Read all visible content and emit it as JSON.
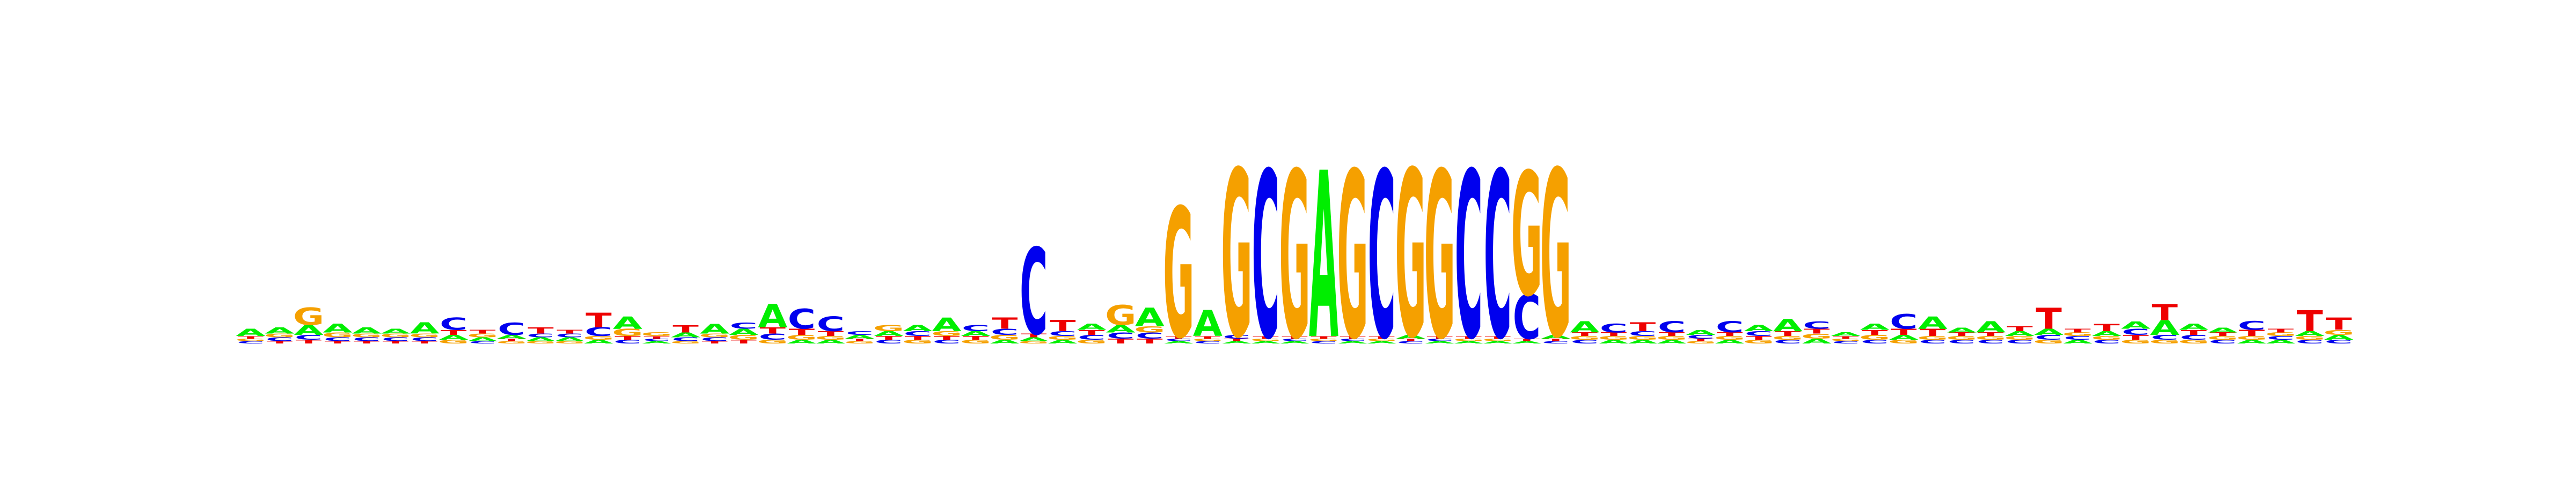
{
  "chart_data": {
    "type": "sequence-logo",
    "alphabet": [
      "A",
      "C",
      "G",
      "T"
    ],
    "colors": {
      "A": "#00ee00",
      "C": "#0000ee",
      "G": "#f5a000",
      "T": "#ee0000"
    },
    "ylim": [
      0,
      2
    ],
    "positions": [
      {
        "A": 0.06,
        "C": 0.02,
        "G": 0.02,
        "T": 0.02
      },
      {
        "A": 0.05,
        "C": 0.03,
        "G": 0.03,
        "T": 0.02
      },
      {
        "A": 0.08,
        "C": 0.04,
        "G": 0.14,
        "T": 0.03
      },
      {
        "A": 0.07,
        "C": 0.03,
        "G": 0.04,
        "T": 0.02
      },
      {
        "A": 0.05,
        "C": 0.03,
        "G": 0.03,
        "T": 0.02
      },
      {
        "A": 0.04,
        "C": 0.03,
        "G": 0.03,
        "T": 0.02
      },
      {
        "A": 0.09,
        "C": 0.03,
        "G": 0.03,
        "T": 0.02
      },
      {
        "A": 0.04,
        "C": 0.1,
        "G": 0.03,
        "T": 0.04
      },
      {
        "A": 0.03,
        "C": 0.02,
        "G": 0.03,
        "T": 0.03
      },
      {
        "A": 0.03,
        "C": 0.1,
        "G": 0.02,
        "T": 0.02
      },
      {
        "A": 0.03,
        "C": 0.03,
        "G": 0.02,
        "T": 0.05
      },
      {
        "A": 0.03,
        "C": 0.03,
        "G": 0.02,
        "T": 0.03
      },
      {
        "A": 0.03,
        "C": 0.07,
        "G": 0.03,
        "T": 0.12
      },
      {
        "A": 0.1,
        "C": 0.03,
        "G": 0.06,
        "T": 0.03
      },
      {
        "A": 0.02,
        "C": 0.02,
        "G": 0.03,
        "T": 0.02
      },
      {
        "A": 0.04,
        "C": 0.03,
        "G": 0.02,
        "T": 0.06
      },
      {
        "A": 0.08,
        "C": 0.03,
        "G": 0.03,
        "T": 0.02
      },
      {
        "A": 0.05,
        "C": 0.05,
        "G": 0.04,
        "T": 0.03
      },
      {
        "A": 0.19,
        "C": 0.05,
        "G": 0.03,
        "T": 0.05
      },
      {
        "A": 0.03,
        "C": 0.16,
        "G": 0.04,
        "T": 0.05
      },
      {
        "A": 0.03,
        "C": 0.12,
        "G": 0.03,
        "T": 0.04
      },
      {
        "A": 0.03,
        "C": 0.03,
        "G": 0.02,
        "T": 0.02
      },
      {
        "A": 0.04,
        "C": 0.03,
        "G": 0.05,
        "T": 0.03
      },
      {
        "A": 0.05,
        "C": 0.04,
        "G": 0.03,
        "T": 0.03
      },
      {
        "A": 0.11,
        "C": 0.03,
        "G": 0.04,
        "T": 0.03
      },
      {
        "A": 0.04,
        "C": 0.05,
        "G": 0.03,
        "T": 0.03
      },
      {
        "A": 0.03,
        "C": 0.05,
        "G": 0.04,
        "T": 0.09
      },
      {
        "A": 0.03,
        "C": 0.7,
        "G": 0.02,
        "T": 0.03
      },
      {
        "A": 0.03,
        "C": 0.04,
        "G": 0.03,
        "T": 0.09
      },
      {
        "A": 0.05,
        "C": 0.04,
        "G": 0.03,
        "T": 0.04
      },
      {
        "A": 0.06,
        "C": 0.05,
        "G": 0.16,
        "T": 0.04
      },
      {
        "A": 0.15,
        "C": 0.05,
        "G": 0.05,
        "T": 0.04
      },
      {
        "A": 0.02,
        "C": 0.02,
        "G": 1.05,
        "T": 0.02
      },
      {
        "A": 0.21,
        "C": 0.02,
        "G": 0.02,
        "T": 0.02
      },
      {
        "A": 0.02,
        "C": 0.03,
        "G": 1.35,
        "T": 0.02
      },
      {
        "A": 0.02,
        "C": 1.35,
        "G": 0.02,
        "T": 0.02
      },
      {
        "A": 0.02,
        "C": 0.02,
        "G": 1.35,
        "T": 0.02
      },
      {
        "A": 1.35,
        "C": 0.02,
        "G": 0.02,
        "T": 0.02
      },
      {
        "A": 0.02,
        "C": 0.02,
        "G": 1.35,
        "T": 0.02
      },
      {
        "A": 0.02,
        "C": 1.35,
        "G": 0.02,
        "T": 0.02
      },
      {
        "A": 0.03,
        "C": 0.02,
        "G": 1.35,
        "T": 0.02
      },
      {
        "A": 0.02,
        "C": 0.02,
        "G": 1.35,
        "T": 0.02
      },
      {
        "A": 0.02,
        "C": 1.35,
        "G": 0.02,
        "T": 0.02
      },
      {
        "A": 0.02,
        "C": 1.35,
        "G": 0.02,
        "T": 0.02
      },
      {
        "A": 0.02,
        "C": 0.36,
        "G": 1.0,
        "T": 0.02
      },
      {
        "A": 0.03,
        "C": 0.02,
        "G": 1.35,
        "T": 0.02
      },
      {
        "A": 0.09,
        "C": 0.03,
        "G": 0.03,
        "T": 0.03
      },
      {
        "A": 0.03,
        "C": 0.07,
        "G": 0.03,
        "T": 0.03
      },
      {
        "A": 0.03,
        "C": 0.04,
        "G": 0.03,
        "T": 0.07
      },
      {
        "A": 0.03,
        "C": 0.09,
        "G": 0.03,
        "T": 0.03
      },
      {
        "A": 0.04,
        "C": 0.03,
        "G": 0.02,
        "T": 0.02
      },
      {
        "A": 0.03,
        "C": 0.09,
        "G": 0.03,
        "T": 0.03
      },
      {
        "A": 0.05,
        "C": 0.04,
        "G": 0.03,
        "T": 0.03
      },
      {
        "A": 0.1,
        "C": 0.03,
        "G": 0.03,
        "T": 0.04
      },
      {
        "A": 0.04,
        "C": 0.06,
        "G": 0.04,
        "T": 0.04
      },
      {
        "A": 0.03,
        "C": 0.02,
        "G": 0.02,
        "T": 0.02
      },
      {
        "A": 0.05,
        "C": 0.03,
        "G": 0.04,
        "T": 0.04
      },
      {
        "A": 0.04,
        "C": 0.12,
        "G": 0.03,
        "T": 0.05
      },
      {
        "A": 0.1,
        "C": 0.03,
        "G": 0.03,
        "T": 0.06
      },
      {
        "A": 0.04,
        "C": 0.03,
        "G": 0.03,
        "T": 0.03
      },
      {
        "A": 0.09,
        "C": 0.03,
        "G": 0.03,
        "T": 0.03
      },
      {
        "A": 0.04,
        "C": 0.03,
        "G": 0.03,
        "T": 0.04
      },
      {
        "A": 0.05,
        "C": 0.04,
        "G": 0.03,
        "T": 0.17
      },
      {
        "A": 0.03,
        "C": 0.03,
        "G": 0.03,
        "T": 0.03
      },
      {
        "A": 0.04,
        "C": 0.03,
        "G": 0.03,
        "T": 0.06
      },
      {
        "A": 0.06,
        "C": 0.05,
        "G": 0.03,
        "T": 0.04
      },
      {
        "A": 0.12,
        "C": 0.04,
        "G": 0.03,
        "T": 0.13
      },
      {
        "A": 0.05,
        "C": 0.04,
        "G": 0.03,
        "T": 0.04
      },
      {
        "A": 0.04,
        "C": 0.03,
        "G": 0.03,
        "T": 0.03
      },
      {
        "A": 0.03,
        "C": 0.07,
        "G": 0.03,
        "T": 0.05
      },
      {
        "A": 0.03,
        "C": 0.03,
        "G": 0.03,
        "T": 0.03
      },
      {
        "A": 0.04,
        "C": 0.03,
        "G": 0.03,
        "T": 0.17
      },
      {
        "A": 0.04,
        "C": 0.03,
        "G": 0.04,
        "T": 0.1
      }
    ]
  }
}
